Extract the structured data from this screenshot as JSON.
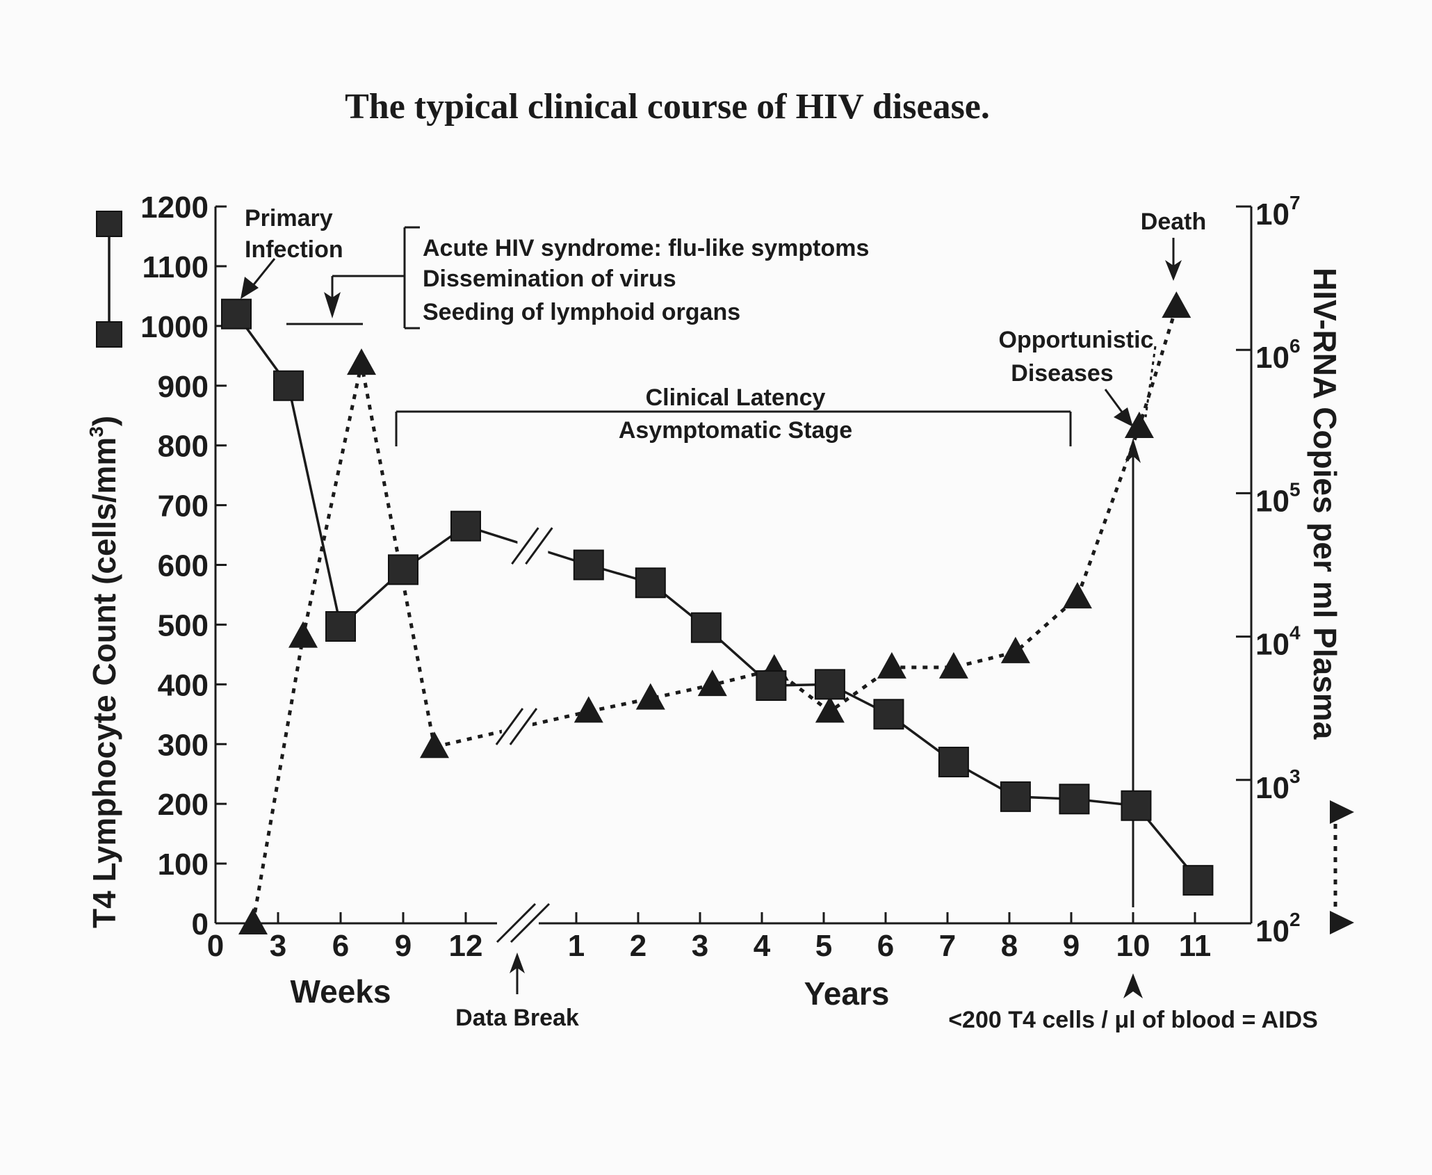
{
  "chart_data": {
    "type": "line",
    "title": "The typical clinical course of HIV disease.",
    "x_axis": {
      "weeks_ticks": [
        "0",
        "3",
        "6",
        "9",
        "12"
      ],
      "years_ticks": [
        "1",
        "2",
        "3",
        "4",
        "5",
        "6",
        "7",
        "8",
        "9",
        "10",
        "11"
      ],
      "weeks_label": "Weeks",
      "years_label": "Years",
      "break_label": "Data Break"
    },
    "y_left": {
      "label": "T4 Lymphocyte Count (cells/mm",
      "label_sup": "3",
      "label_end": ")",
      "ticks": [
        "0",
        "100",
        "200",
        "300",
        "400",
        "500",
        "600",
        "700",
        "800",
        "900",
        "1000",
        "1100",
        "1200"
      ],
      "ylim": [
        0,
        1200
      ]
    },
    "y_right": {
      "label": "HIV-RNA Copies per ml Plasma",
      "scale": "log",
      "ticks": [
        {
          "base": "10",
          "exp": "2"
        },
        {
          "base": "10",
          "exp": "3"
        },
        {
          "base": "10",
          "exp": "4"
        },
        {
          "base": "10",
          "exp": "5"
        },
        {
          "base": "10",
          "exp": "6"
        },
        {
          "base": "10",
          "exp": "7"
        }
      ],
      "ylim": [
        100,
        10000000
      ]
    },
    "series": [
      {
        "marker": "square",
        "line": "solid",
        "axis": "left",
        "points": [
          {
            "period": "weeks",
            "x": 1,
            "y": 1020
          },
          {
            "period": "weeks",
            "x": 3.5,
            "y": 900
          },
          {
            "period": "weeks",
            "x": 6,
            "y": 497
          },
          {
            "period": "weeks",
            "x": 9,
            "y": 592
          },
          {
            "period": "weeks",
            "x": 12,
            "y": 665
          },
          {
            "period": "years",
            "x": 1.2,
            "y": 600
          },
          {
            "period": "years",
            "x": 2.2,
            "y": 570
          },
          {
            "period": "years",
            "x": 3.1,
            "y": 495
          },
          {
            "period": "years",
            "x": 4.15,
            "y": 398
          },
          {
            "period": "years",
            "x": 5.1,
            "y": 400
          },
          {
            "period": "years",
            "x": 6.05,
            "y": 350
          },
          {
            "period": "years",
            "x": 7.1,
            "y": 270
          },
          {
            "period": "years",
            "x": 8.1,
            "y": 212
          },
          {
            "period": "years",
            "x": 9.05,
            "y": 208
          },
          {
            "period": "years",
            "x": 10.05,
            "y": 197
          },
          {
            "period": "years",
            "x": 11.05,
            "y": 72
          }
        ],
        "break_between": [
          4,
          5
        ]
      },
      {
        "marker": "triangle",
        "line": "dotted",
        "axis": "right",
        "points": [
          {
            "period": "weeks",
            "x": 1.8,
            "y": 100
          },
          {
            "period": "weeks",
            "x": 4.2,
            "y": 10000
          },
          {
            "period": "weeks",
            "x": 7,
            "y": 800000
          },
          {
            "period": "weeks",
            "x": 10.5,
            "y": 1700
          },
          {
            "period": "years",
            "x": 1.2,
            "y": 3000
          },
          {
            "period": "years",
            "x": 2.2,
            "y": 3700
          },
          {
            "period": "years",
            "x": 3.2,
            "y": 4600
          },
          {
            "period": "years",
            "x": 4.2,
            "y": 5900
          },
          {
            "period": "years",
            "x": 5.1,
            "y": 3000
          },
          {
            "period": "years",
            "x": 6.1,
            "y": 6100
          },
          {
            "period": "years",
            "x": 7.1,
            "y": 6100
          },
          {
            "period": "years",
            "x": 8.1,
            "y": 7800
          },
          {
            "period": "years",
            "x": 9.1,
            "y": 18800
          },
          {
            "period": "years",
            "x": 10.1,
            "y": 290000
          },
          {
            "period": "years",
            "x": 10.7,
            "y": 2000000
          }
        ],
        "break_between": [
          3,
          4
        ]
      }
    ],
    "annotations": {
      "primary_infection": [
        "Primary",
        "Infection"
      ],
      "acute_syndrome": [
        "Acute HIV syndrome: flu-like symptoms",
        "Dissemination of virus",
        "Seeding of lymphoid organs"
      ],
      "clinical_latency": [
        "Clinical Latency",
        "Asymptomatic Stage"
      ],
      "opportunistic": [
        "Opportunistic",
        "Diseases"
      ],
      "death": "Death",
      "aids_threshold": "<200 T4 cells / μl of blood = AIDS"
    }
  }
}
